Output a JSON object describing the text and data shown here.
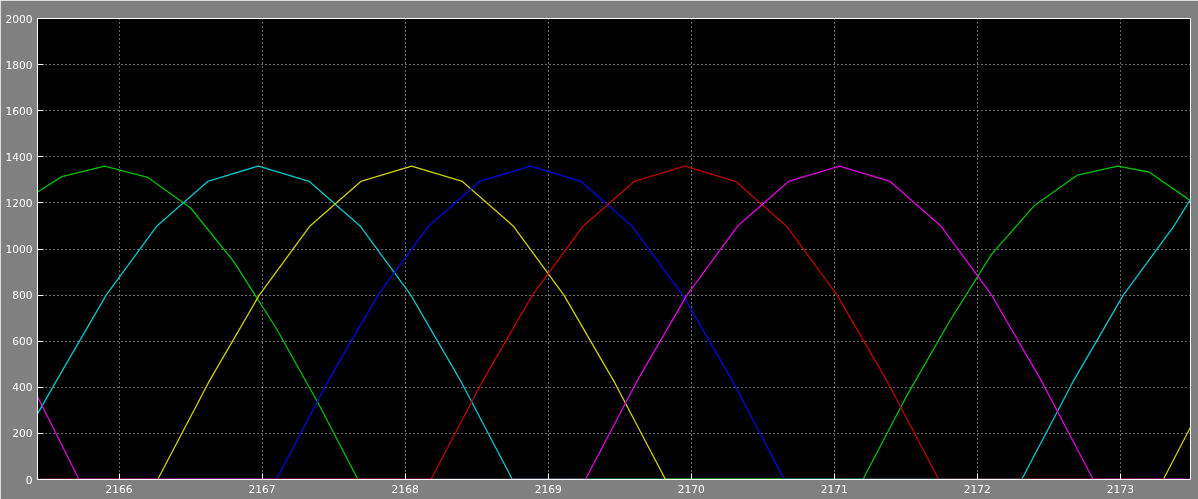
{
  "chart_data": {
    "type": "line",
    "xlim": [
      2165.43,
      2173.49
    ],
    "ylim": [
      0,
      2000
    ],
    "xticks": [
      2166,
      2167,
      2168,
      2169,
      2170,
      2171,
      2172,
      2173
    ],
    "yticks": [
      0,
      200,
      400,
      600,
      800,
      1000,
      1200,
      1400,
      1600,
      1800,
      2000
    ],
    "grid": true,
    "line_style": "solid",
    "marker": "none",
    "series": [
      {
        "color": "#00c000",
        "x": [
          2165.43,
          2165.6,
          2165.9,
          2166.2,
          2166.5,
          2166.8,
          2167.1,
          2167.4,
          2167.67,
          2171.2,
          2171.5,
          2171.8,
          2172.1,
          2172.4,
          2172.7,
          2172.98,
          2173.2,
          2173.49
        ],
        "values": [
          1247,
          1314,
          1360,
          1311,
          1178,
          947,
          655,
          322,
          0,
          0,
          356,
          680,
          978,
          1189,
          1321,
          1360,
          1334,
          1210
        ]
      },
      {
        "color": "#00c8c8",
        "x": [
          2165.43,
          2165.555,
          2165.91,
          2166.265,
          2166.62,
          2166.975,
          2167.33,
          2167.685,
          2168.04,
          2168.395,
          2168.75,
          2172.31,
          2172.665,
          2173.02,
          2173.375,
          2173.49
        ],
        "values": [
          285,
          420,
          800,
          1100,
          1293,
          1360,
          1293,
          1100,
          800,
          420,
          0,
          0,
          420,
          800,
          1100,
          1215
        ]
      },
      {
        "color": "#d0d000",
        "x": [
          2165.43,
          2166.27,
          2166.625,
          2166.98,
          2167.335,
          2167.69,
          2168.045,
          2168.4,
          2168.755,
          2169.11,
          2169.465,
          2169.82,
          2173.3,
          2173.49
        ],
        "values": [
          0,
          0,
          420,
          800,
          1100,
          1293,
          1360,
          1293,
          1100,
          800,
          420,
          0,
          0,
          227
        ]
      },
      {
        "color": "#0000e0",
        "x": [
          2165.43,
          2167.1,
          2167.455,
          2167.81,
          2168.165,
          2168.52,
          2168.875,
          2169.23,
          2169.585,
          2169.94,
          2170.295,
          2170.65,
          2173.49
        ],
        "values": [
          0,
          0,
          420,
          800,
          1100,
          1293,
          1360,
          1293,
          1100,
          800,
          420,
          0,
          0
        ]
      },
      {
        "color": "#c00000",
        "x": [
          2165.43,
          2168.18,
          2168.535,
          2168.89,
          2169.245,
          2169.6,
          2169.955,
          2170.31,
          2170.665,
          2171.02,
          2171.375,
          2171.73,
          2173.49
        ],
        "values": [
          0,
          0,
          420,
          800,
          1100,
          1293,
          1360,
          1293,
          1100,
          800,
          420,
          0,
          0
        ]
      },
      {
        "color": "#e000e0",
        "x": [
          2165.43,
          2165.72,
          2169.26,
          2169.615,
          2169.97,
          2170.325,
          2170.68,
          2171.035,
          2171.39,
          2171.745,
          2172.1,
          2172.455,
          2172.81,
          2173.49
        ],
        "values": [
          360,
          0,
          0,
          420,
          800,
          1100,
          1293,
          1360,
          1293,
          1100,
          800,
          420,
          0,
          0
        ]
      }
    ]
  }
}
